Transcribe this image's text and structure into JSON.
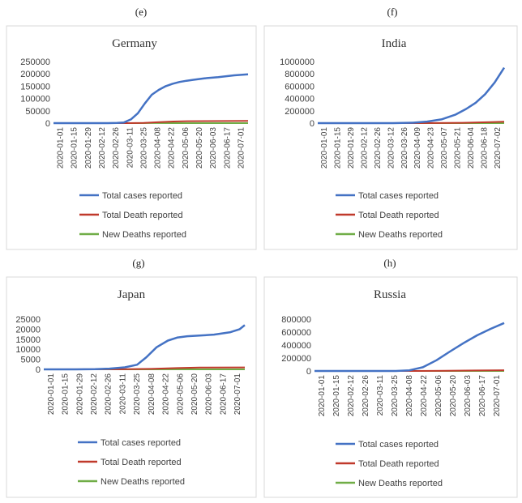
{
  "colors": {
    "total_cases": "#4472c4",
    "total_deaths": "#c0392b",
    "new_deaths": "#70ad47",
    "axis": "#d9d9d9"
  },
  "legend": [
    "Total cases reported",
    "Total Death reported",
    "New Deaths reported"
  ],
  "chart_data": [
    {
      "panel_label": "(e)",
      "type": "line",
      "title": "Germany",
      "ylim": [
        0,
        250000
      ],
      "yticks": [
        "0",
        "50000",
        "100000",
        "150000",
        "200000",
        "250000"
      ],
      "xticks": [
        "2020-01-01",
        "2020-01-15",
        "2020-01-29",
        "2020-02-12",
        "2020-02-26",
        "2020-03-11",
        "2020-03-25",
        "2020-04-08",
        "2020-04-22",
        "2020-05-06",
        "2020-05-20",
        "2020-06-03",
        "2020-06-17",
        "2020-07-01"
      ],
      "x_range": [
        "2020-01-01",
        "2020-07-15"
      ],
      "series": [
        {
          "name": "Total cases reported",
          "x": [
            "2020-01-01",
            "2020-02-25",
            "2020-03-05",
            "2020-03-12",
            "2020-03-19",
            "2020-03-26",
            "2020-04-02",
            "2020-04-09",
            "2020-04-16",
            "2020-04-23",
            "2020-04-30",
            "2020-05-07",
            "2020-05-14",
            "2020-05-21",
            "2020-06-01",
            "2020-06-15",
            "2020-07-01",
            "2020-07-15"
          ],
          "y": [
            0,
            50,
            600,
            2500,
            15000,
            40000,
            80000,
            115000,
            135000,
            150000,
            160000,
            167000,
            172000,
            176000,
            182000,
            187000,
            194000,
            198000
          ]
        },
        {
          "name": "Total Death reported",
          "x": [
            "2020-01-01",
            "2020-03-15",
            "2020-04-01",
            "2020-04-15",
            "2020-05-01",
            "2020-05-15",
            "2020-07-15"
          ],
          "y": [
            0,
            0,
            1000,
            3500,
            6500,
            7800,
            9100
          ]
        },
        {
          "name": "New Deaths reported",
          "x": [
            "2020-01-01",
            "2020-03-20",
            "2020-04-10",
            "2020-05-01",
            "2020-06-01",
            "2020-07-15"
          ],
          "y": [
            0,
            50,
            250,
            150,
            30,
            10
          ]
        }
      ]
    },
    {
      "panel_label": "(f)",
      "type": "line",
      "title": "India",
      "ylim": [
        0,
        1000000
      ],
      "yticks": [
        "0",
        "200000",
        "400000",
        "600000",
        "800000",
        "1000000"
      ],
      "xticks": [
        "2020-01-01",
        "2020-01-15",
        "2020-01-29",
        "2020-02-12",
        "2020-02-26",
        "2020-03-12",
        "2020-03-26",
        "2020-04-09",
        "2020-04-23",
        "2020-05-07",
        "2020-05-21",
        "2020-06-04",
        "2020-06-18",
        "2020-07-02"
      ],
      "x_range": [
        "2020-01-01",
        "2020-07-15"
      ],
      "series": [
        {
          "name": "Total cases reported",
          "x": [
            "2020-01-01",
            "2020-03-20",
            "2020-04-10",
            "2020-04-25",
            "2020-05-10",
            "2020-05-25",
            "2020-06-05",
            "2020-06-15",
            "2020-06-25",
            "2020-07-05",
            "2020-07-15"
          ],
          "y": [
            0,
            500,
            7000,
            25000,
            60000,
            140000,
            230000,
            330000,
            470000,
            660000,
            900000
          ]
        },
        {
          "name": "Total Death reported",
          "x": [
            "2020-01-01",
            "2020-04-01",
            "2020-05-01",
            "2020-06-01",
            "2020-07-01",
            "2020-07-15"
          ],
          "y": [
            0,
            50,
            1100,
            5600,
            17000,
            24000
          ]
        },
        {
          "name": "New Deaths reported",
          "x": [
            "2020-01-01",
            "2020-04-15",
            "2020-06-01",
            "2020-07-15"
          ],
          "y": [
            0,
            30,
            250,
            550
          ]
        }
      ]
    },
    {
      "panel_label": "(g)",
      "type": "line",
      "title": "Japan",
      "ylim": [
        0,
        25000
      ],
      "yticks": [
        "0",
        "5000",
        "10000",
        "15000",
        "20000",
        "25000"
      ],
      "xticks": [
        "2020-01-01",
        "2020-01-15",
        "2020-01-29",
        "2020-02-12",
        "2020-02-26",
        "2020-03-11",
        "2020-03-25",
        "2020-04-08",
        "2020-04-22",
        "2020-05-06",
        "2020-05-20",
        "2020-06-03",
        "2020-06-17",
        "2020-07-01"
      ],
      "x_range": [
        "2020-01-01",
        "2020-07-15"
      ],
      "series": [
        {
          "name": "Total cases reported",
          "x": [
            "2020-01-01",
            "2020-02-01",
            "2020-02-20",
            "2020-03-05",
            "2020-03-20",
            "2020-04-01",
            "2020-04-10",
            "2020-04-20",
            "2020-05-01",
            "2020-05-10",
            "2020-05-20",
            "2020-06-01",
            "2020-06-15",
            "2020-07-01",
            "2020-07-10",
            "2020-07-15"
          ],
          "y": [
            0,
            20,
            100,
            350,
            1000,
            2300,
            6000,
            11000,
            14300,
            15800,
            16500,
            16800,
            17300,
            18500,
            20000,
            22000
          ]
        },
        {
          "name": "Total Death reported",
          "x": [
            "2020-01-01",
            "2020-03-15",
            "2020-04-15",
            "2020-05-10",
            "2020-06-01",
            "2020-07-15"
          ],
          "y": [
            0,
            30,
            250,
            650,
            900,
            985
          ]
        },
        {
          "name": "New Deaths reported",
          "x": [
            "2020-01-01",
            "2020-04-15",
            "2020-05-15",
            "2020-07-15"
          ],
          "y": [
            0,
            20,
            15,
            2
          ]
        }
      ]
    },
    {
      "panel_label": "(h)",
      "type": "line",
      "title": "Russia",
      "ylim": [
        0,
        800000
      ],
      "yticks": [
        "0",
        "200000",
        "400000",
        "600000",
        "800000"
      ],
      "xticks": [
        "2020-01-01",
        "2020-01-15",
        "2020-02-12",
        "2020-02-26",
        "2020-03-11",
        "2020-03-25",
        "2020-04-08",
        "2020-04-22",
        "2020-05-06",
        "2020-05-20",
        "2020-06-03",
        "2020-06-17",
        "2020-07-01"
      ],
      "x_range": [
        "2020-01-01",
        "2020-07-15"
      ],
      "series": [
        {
          "name": "Total cases reported",
          "x": [
            "2020-01-01",
            "2020-03-25",
            "2020-04-08",
            "2020-04-22",
            "2020-05-06",
            "2020-05-20",
            "2020-06-03",
            "2020-06-17",
            "2020-07-01",
            "2020-07-15"
          ],
          "y": [
            0,
            500,
            10000,
            58000,
            165000,
            300000,
            430000,
            550000,
            650000,
            740000
          ]
        },
        {
          "name": "Total Death reported",
          "x": [
            "2020-01-01",
            "2020-04-15",
            "2020-05-15",
            "2020-06-15",
            "2020-07-15"
          ],
          "y": [
            0,
            200,
            2500,
            7000,
            11600
          ]
        },
        {
          "name": "New Deaths reported",
          "x": [
            "2020-01-01",
            "2020-05-01",
            "2020-06-15",
            "2020-07-15"
          ],
          "y": [
            0,
            80,
            170,
            150
          ]
        }
      ]
    }
  ]
}
